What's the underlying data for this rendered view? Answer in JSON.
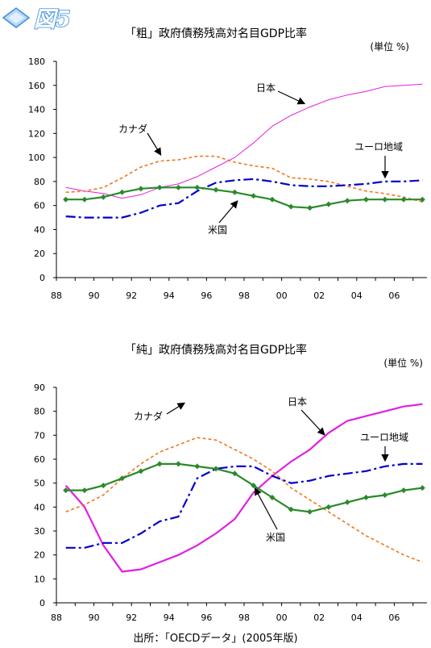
{
  "figure_label": "図5",
  "source": "出所：「OECDデータ」(2005年版)",
  "colors": {
    "japan": "#e020e0",
    "canada": "#f07820",
    "euro": "#0000cc",
    "us": "#2a8a2a",
    "badge": "#3a8ee0"
  },
  "chart_data": [
    {
      "type": "line",
      "title": "「粗」政府債務残高対名目GDP比率",
      "unit": "(単位 %)",
      "ylim": [
        0,
        180
      ],
      "yticks": [
        "0",
        "20",
        "40",
        "60",
        "80",
        "100",
        "120",
        "140",
        "160",
        "180"
      ],
      "xticks": [
        "88",
        "90",
        "92",
        "94",
        "96",
        "98",
        "00",
        "02",
        "04",
        "06"
      ],
      "x": [
        1988,
        1989,
        1990,
        1991,
        1992,
        1993,
        1994,
        1995,
        1996,
        1997,
        1998,
        1999,
        2000,
        2001,
        2002,
        2003,
        2004,
        2005,
        2006,
        2007
      ],
      "series": [
        {
          "name": "日本",
          "color": "#e020e0",
          "style": "solid",
          "values": [
            75,
            72,
            70,
            66,
            69,
            75,
            78,
            84,
            92,
            100,
            112,
            126,
            135,
            142,
            148,
            152,
            155,
            159,
            160,
            161
          ]
        },
        {
          "name": "カナダ",
          "color": "#f07820",
          "style": "dashed",
          "values": [
            71,
            72,
            75,
            83,
            92,
            97,
            98,
            101,
            101,
            96,
            93,
            91,
            83,
            82,
            80,
            76,
            72,
            70,
            67,
            63
          ]
        },
        {
          "name": "ユーロ地域",
          "color": "#0000cc",
          "style": "dashdot",
          "values": [
            51,
            50,
            50,
            50,
            54,
            60,
            62,
            72,
            79,
            81,
            82,
            80,
            77,
            76,
            76,
            77,
            78,
            80,
            80,
            81
          ]
        },
        {
          "name": "米国",
          "color": "#2a8a2a",
          "style": "diamond",
          "values": [
            65,
            65,
            67,
            71,
            74,
            75,
            75,
            75,
            73,
            71,
            68,
            65,
            59,
            58,
            61,
            64,
            65,
            65,
            65,
            65
          ]
        }
      ]
    },
    {
      "type": "line",
      "title": "「純」政府債務残高対名目GDP比率",
      "unit": "(単位 %)",
      "ylim": [
        0,
        90
      ],
      "yticks": [
        "0",
        "10",
        "20",
        "30",
        "40",
        "50",
        "60",
        "70",
        "80",
        "90"
      ],
      "xticks": [
        "88",
        "90",
        "92",
        "94",
        "96",
        "98",
        "00",
        "02",
        "04",
        "06"
      ],
      "x": [
        1988,
        1989,
        1990,
        1991,
        1992,
        1993,
        1994,
        1995,
        1996,
        1997,
        1998,
        1999,
        2000,
        2001,
        2002,
        2003,
        2004,
        2005,
        2006,
        2007
      ],
      "series": [
        {
          "name": "日本",
          "color": "#e020e0",
          "style": "solid",
          "values": [
            49,
            40,
            24,
            13,
            14,
            17,
            20,
            24,
            29,
            35,
            46,
            53,
            59,
            64,
            71,
            76,
            78,
            80,
            82,
            83
          ]
        },
        {
          "name": "カナダ",
          "color": "#f07820",
          "style": "dashed",
          "values": [
            38,
            41,
            45,
            52,
            58,
            63,
            66,
            69,
            68,
            64,
            60,
            55,
            48,
            43,
            38,
            33,
            28,
            24,
            20,
            17
          ]
        },
        {
          "name": "ユーロ地域",
          "color": "#0000cc",
          "style": "dashdot",
          "values": [
            23,
            23,
            25,
            25,
            29,
            34,
            36,
            52,
            56,
            57,
            57,
            53,
            50,
            51,
            53,
            54,
            55,
            57,
            58,
            58
          ]
        },
        {
          "name": "米国",
          "color": "#2a8a2a",
          "style": "diamond",
          "values": [
            47,
            47,
            49,
            52,
            55,
            58,
            58,
            57,
            56,
            54,
            49,
            44,
            39,
            38,
            40,
            42,
            44,
            45,
            47,
            48
          ]
        }
      ]
    }
  ]
}
